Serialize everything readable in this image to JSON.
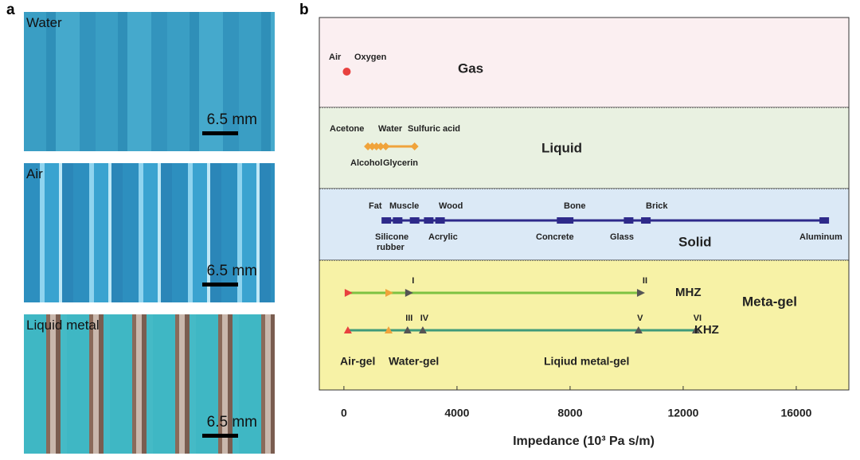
{
  "panel_a": {
    "label": "a",
    "photos": [
      {
        "title": "Water",
        "scale": "6.5 mm"
      },
      {
        "title": "Air",
        "scale": "6.5 mm"
      },
      {
        "title": "Liquid metal",
        "scale": "6.5 mm"
      }
    ]
  },
  "chart_data": {
    "type": "impedance",
    "label": "b",
    "xlabel": "Impedance (10³ Pa s/m)",
    "xlim": [
      -870,
      17860
    ],
    "xticks": [
      0,
      4000,
      8000,
      12000,
      16000
    ],
    "bands": [
      {
        "name": "Gas",
        "color": "#e8413f",
        "fill": "#fbeff1",
        "labels": [
          "Air",
          "Oxygen"
        ],
        "markers": [
          100
        ]
      },
      {
        "name": "Liquid",
        "color": "#f0a33b",
        "fill": "#e9f1e1",
        "labels": [
          "Acetone",
          "Water",
          "Sulfuric acid",
          "Alcohol",
          "Glycerin"
        ],
        "markers": [
          850,
          1000,
          1150,
          1300,
          1480,
          2500
        ]
      },
      {
        "name": "Solid",
        "color": "#2e2a8a",
        "fill": "#dbe9f6",
        "labels": [
          "Fat",
          "Muscle",
          "Wood",
          "Silicone",
          "rubber",
          "Acrylic",
          "Bone",
          "Concrete",
          "Glass",
          "Brick",
          "Aluminum"
        ],
        "markers": [
          1500,
          1900,
          2500,
          3000,
          3400,
          7700,
          7950,
          10070,
          10680,
          16990
        ]
      },
      {
        "name": "Meta-gel",
        "color": "#1e7a34",
        "fill": "#f7f2a6",
        "labels": [],
        "markers": []
      }
    ],
    "series": [
      {
        "name": "MHZ",
        "color": "#7dc242",
        "values": [
          140,
          1580,
          2280,
          10480
        ],
        "numerals": [
          null,
          null,
          "I",
          "II"
        ]
      },
      {
        "name": "KHZ",
        "color": "#3f9a7a",
        "values": [
          140,
          1580,
          2250,
          2790,
          10420,
          12450
        ],
        "numerals": [
          null,
          null,
          "III",
          "IV",
          "V",
          "VI"
        ]
      }
    ],
    "gel_types": [
      {
        "name": "Air-gel",
        "color": "#e8413f"
      },
      {
        "name": "Water-gel",
        "color": "#f0a33b"
      },
      {
        "name": "Liqiud metal-gel",
        "color": "#2e2a8a"
      }
    ]
  }
}
